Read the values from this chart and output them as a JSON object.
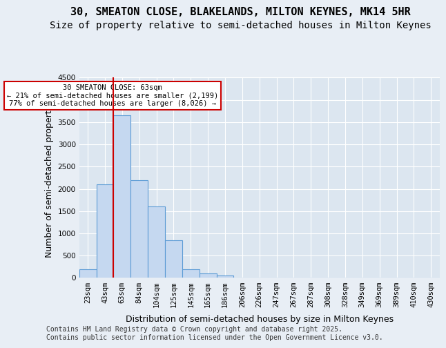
{
  "title1": "30, SMEATON CLOSE, BLAKELANDS, MILTON KEYNES, MK14 5HR",
  "title2": "Size of property relative to semi-detached houses in Milton Keynes",
  "xlabel": "Distribution of semi-detached houses by size in Milton Keynes",
  "ylabel": "Number of semi-detached properties",
  "bin_labels": [
    "23sqm",
    "43sqm",
    "63sqm",
    "84sqm",
    "104sqm",
    "125sqm",
    "145sqm",
    "165sqm",
    "186sqm",
    "206sqm",
    "226sqm",
    "247sqm",
    "267sqm",
    "287sqm",
    "308sqm",
    "328sqm",
    "349sqm",
    "369sqm",
    "389sqm",
    "410sqm",
    "430sqm"
  ],
  "bar_values": [
    200,
    2100,
    3650,
    2200,
    1600,
    850,
    200,
    100,
    50,
    0,
    0,
    0,
    0,
    0,
    0,
    0,
    0,
    0,
    0,
    0,
    0
  ],
  "bar_color": "#c5d8f0",
  "bar_edge_color": "#5b9bd5",
  "annotation_text": "30 SMEATON CLOSE: 63sqm\n← 21% of semi-detached houses are smaller (2,199)\n77% of semi-detached houses are larger (8,026) →",
  "annotation_box_color": "#ffffff",
  "annotation_box_edge": "#cc0000",
  "vline_color": "#cc0000",
  "vline_x": 1.5,
  "ylim": [
    0,
    4500
  ],
  "yticks": [
    0,
    500,
    1000,
    1500,
    2000,
    2500,
    3000,
    3500,
    4000,
    4500
  ],
  "footer_text": "Contains HM Land Registry data © Crown copyright and database right 2025.\nContains public sector information licensed under the Open Government Licence v3.0.",
  "bg_color": "#e8eef5",
  "plot_bg_color": "#dce6f0",
  "grid_color": "#ffffff",
  "title_fontsize": 11,
  "subtitle_fontsize": 10,
  "axis_label_fontsize": 9,
  "tick_fontsize": 7.5,
  "footer_fontsize": 7
}
